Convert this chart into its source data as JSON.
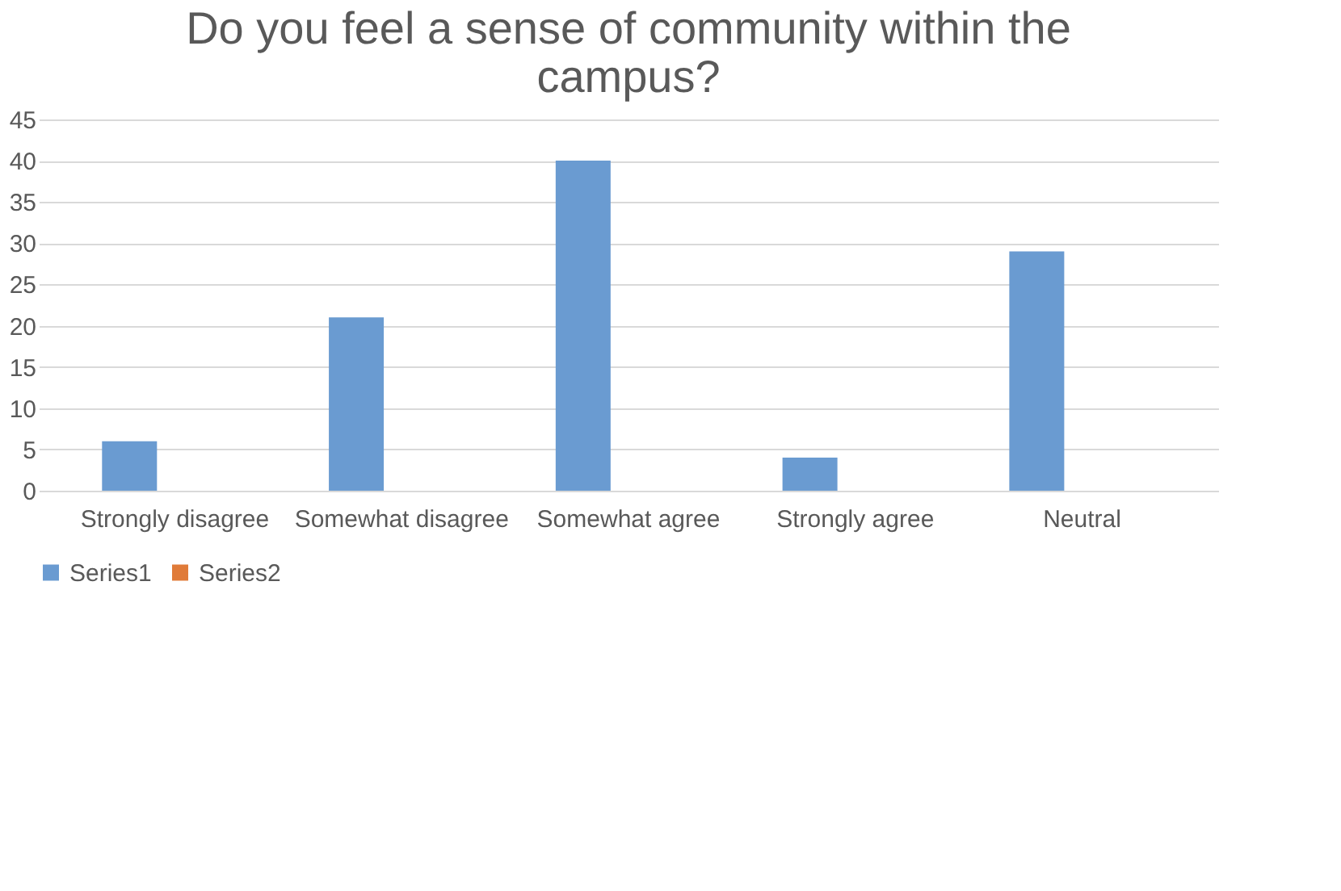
{
  "chart_data": {
    "type": "bar",
    "title": "Do you feel a sense of community within the campus?",
    "categories": [
      "Strongly disagree",
      "Somewhat disagree",
      "Somewhat agree",
      "Strongly agree",
      "Neutral"
    ],
    "series": [
      {
        "name": "Series1",
        "color": "#6a9bd1",
        "values": [
          6,
          21,
          40,
          4,
          29
        ]
      },
      {
        "name": "Series2",
        "color": "#e07b39",
        "values": [
          null,
          null,
          null,
          null,
          null
        ]
      }
    ],
    "ylim": [
      0,
      45
    ],
    "yticks": [
      0,
      5,
      10,
      15,
      20,
      25,
      30,
      35,
      40,
      45
    ],
    "grid": "y",
    "legend": "bottom"
  }
}
